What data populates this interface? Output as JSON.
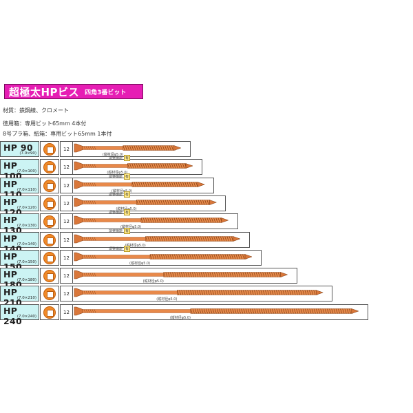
{
  "title": {
    "main": "超極太HPビス",
    "sub": "四角3番ビット"
  },
  "material": "材質：鉄鋼線、クロメート",
  "packaging": [
    "徳用箱：専用ビット65mm 4本付",
    "8号プラ箱、紙箱：専用ビット65mm 1本付"
  ],
  "adjust_label": "調整機能",
  "adjust_yes": "有",
  "products": [
    {
      "code": "HP  90",
      "size": "(7.0×90)",
      "qty": "12",
      "length_mm": 90,
      "adjust": false,
      "neck_label": "(縦材径φ5.0)"
    },
    {
      "code": "HP 100",
      "size": "(7.0×100)",
      "qty": "12",
      "length_mm": 100,
      "adjust": true,
      "neck_label": "(縦材径φ5.0)"
    },
    {
      "code": "HP 110",
      "size": "(7.0×110)",
      "qty": "12",
      "length_mm": 110,
      "adjust": true,
      "neck_label": "(縦材径φ5.0)"
    },
    {
      "code": "HP 120",
      "size": "(7.0×120)",
      "qty": "12",
      "length_mm": 120,
      "adjust": true,
      "neck_label": "(縦材径φ5.0)"
    },
    {
      "code": "HP 130",
      "size": "(7.0×130)",
      "qty": "12",
      "length_mm": 130,
      "adjust": true,
      "neck_label": "(縦材径φ5.0)"
    },
    {
      "code": "HP 140",
      "size": "(7.0×140)",
      "qty": "12",
      "length_mm": 140,
      "adjust": true,
      "neck_label": "(縦材径φ5.0)"
    },
    {
      "code": "HP 150",
      "size": "(7.0×150)",
      "qty": "12",
      "length_mm": 150,
      "adjust": true,
      "neck_label": "(縦材径φ5.0)"
    },
    {
      "code": "HP 180",
      "size": "(7.0×180)",
      "qty": "12",
      "length_mm": 180,
      "adjust": false,
      "neck_label": "(縦材径φ5.0)"
    },
    {
      "code": "HP 210",
      "size": "(7.0×210)",
      "qty": "12",
      "length_mm": 210,
      "adjust": false,
      "neck_label": "(縦材径φ5.0)"
    },
    {
      "code": "HP 240",
      "size": "(7.0×240)",
      "qty": "12",
      "length_mm": 240,
      "adjust": false,
      "neck_label": "(縦材径φ5.0)"
    }
  ],
  "colors": {
    "banner": "#e61eb4",
    "header_bg": "#ccf4f4",
    "screw": "#e8894a",
    "bit": "#f08a28"
  }
}
